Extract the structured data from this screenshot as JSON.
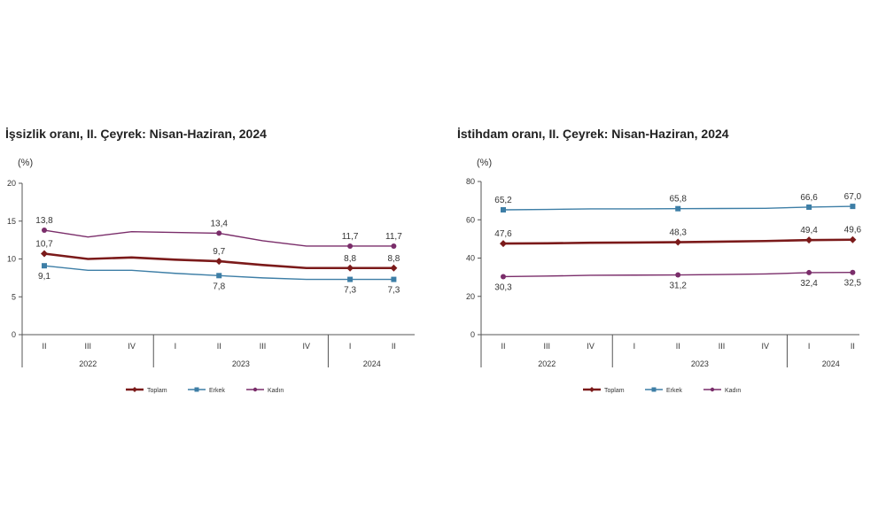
{
  "chart_data": [
    {
      "type": "line",
      "title": "İşsizlik oranı, II. Çeyrek: Nisan-Haziran, 2024",
      "unit": "(%)",
      "ylim": [
        0,
        20
      ],
      "yticks": [
        "0",
        "5",
        "10",
        "15",
        "20"
      ],
      "categories": [
        "II",
        "III",
        "IV",
        "I",
        "II",
        "III",
        "IV",
        "I",
        "II"
      ],
      "year_groups": [
        {
          "label": "2022",
          "span": 3
        },
        {
          "label": "2023",
          "span": 4
        },
        {
          "label": "2024",
          "span": 2
        }
      ],
      "legend_placement": "bottom",
      "series": [
        {
          "name": "Toplam",
          "color": "#7b1a1a",
          "marker": "diamond",
          "values": [
            10.7,
            10.0,
            10.2,
            9.9,
            9.7,
            9.2,
            8.8,
            8.8,
            8.8
          ],
          "labels": [
            "10,7",
            "",
            "",
            "",
            "9,7",
            "",
            "",
            "8,8",
            "8,8"
          ]
        },
        {
          "name": "Erkek",
          "color": "#3d7ea6",
          "marker": "square",
          "values": [
            9.1,
            8.5,
            8.5,
            8.1,
            7.8,
            7.5,
            7.3,
            7.3,
            7.3
          ],
          "labels": [
            "9,1",
            "",
            "",
            "",
            "7,8",
            "",
            "",
            "7,3",
            "7,3"
          ]
        },
        {
          "name": "Kadın",
          "color": "#7a2d6a",
          "marker": "dot",
          "values": [
            13.8,
            12.9,
            13.6,
            13.5,
            13.4,
            12.4,
            11.7,
            11.7,
            11.7
          ],
          "labels": [
            "13,8",
            "",
            "",
            "",
            "13,4",
            "",
            "",
            "11,7",
            "11,7"
          ]
        }
      ]
    },
    {
      "type": "line",
      "title": "İstihdam oranı, II. Çeyrek: Nisan-Haziran, 2024",
      "unit": "(%)",
      "ylim": [
        0,
        80
      ],
      "yticks": [
        "0",
        "20",
        "40",
        "60",
        "80"
      ],
      "categories": [
        "II",
        "III",
        "IV",
        "I",
        "II",
        "III",
        "IV",
        "I",
        "II"
      ],
      "year_groups": [
        {
          "label": "2022",
          "span": 3
        },
        {
          "label": "2023",
          "span": 4
        },
        {
          "label": "2024",
          "span": 2
        }
      ],
      "legend_placement": "bottom",
      "series": [
        {
          "name": "Toplam",
          "color": "#7b1a1a",
          "marker": "diamond",
          "values": [
            47.6,
            47.7,
            48.0,
            48.1,
            48.3,
            48.6,
            48.9,
            49.4,
            49.6
          ],
          "labels": [
            "47,6",
            "",
            "",
            "",
            "48,3",
            "",
            "",
            "49,4",
            "49,6"
          ]
        },
        {
          "name": "Erkek",
          "color": "#3d7ea6",
          "marker": "square",
          "values": [
            65.2,
            65.4,
            65.7,
            65.7,
            65.8,
            65.9,
            66.0,
            66.6,
            67.0
          ],
          "labels": [
            "65,2",
            "",
            "",
            "",
            "65,8",
            "",
            "",
            "66,6",
            "67,0"
          ]
        },
        {
          "name": "Kadın",
          "color": "#7a2d6a",
          "marker": "dot",
          "values": [
            30.3,
            30.6,
            31.0,
            31.1,
            31.2,
            31.4,
            31.7,
            32.4,
            32.5
          ],
          "labels": [
            "30,3",
            "",
            "",
            "",
            "31,2",
            "",
            "",
            "32,4",
            "32,5"
          ]
        }
      ]
    }
  ]
}
